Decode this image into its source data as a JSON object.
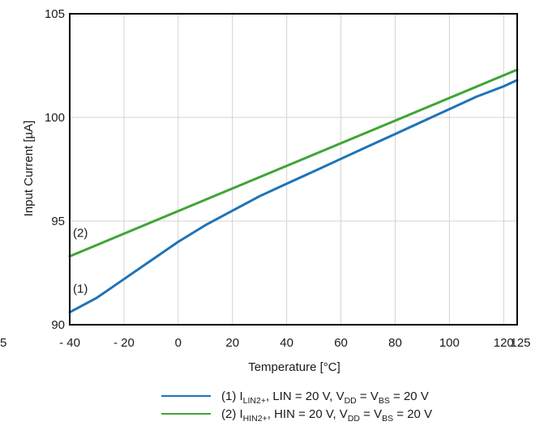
{
  "chart_data": {
    "type": "line",
    "title": "",
    "xlabel": "Temperature [°C]",
    "ylabel": "Input Current [µA]",
    "xlim": [
      -40,
      125
    ],
    "ylim": [
      90,
      105
    ],
    "x_ticks": [
      -40,
      -20,
      0,
      20,
      40,
      60,
      80,
      100,
      120,
      125
    ],
    "x_tick_labels": [
      "- 40",
      "- 20",
      "0",
      "20",
      "40",
      "60",
      "80",
      "100",
      "120",
      "125"
    ],
    "y_ticks": [
      90,
      95,
      100,
      105
    ],
    "y_tick_labels": [
      "90",
      "95",
      "100",
      "105"
    ],
    "stray_left_label": "5",
    "grid": true,
    "legend_position": "bottom",
    "series": [
      {
        "name": "(1) I_LIN2+, LIN = 20 V, V_DD = V_BS = 20 V",
        "curve_label": "(1)",
        "color": "#1f73b7",
        "x": [
          -40,
          -30,
          -20,
          -10,
          0,
          10,
          20,
          30,
          40,
          50,
          60,
          70,
          80,
          90,
          100,
          110,
          120,
          125
        ],
        "y": [
          90.6,
          91.3,
          92.2,
          93.1,
          94.0,
          94.8,
          95.5,
          96.2,
          96.8,
          97.4,
          98.0,
          98.6,
          99.2,
          99.8,
          100.4,
          101.0,
          101.5,
          101.8
        ]
      },
      {
        "name": "(2) I_HIN2+, HIN = 20 V, V_DD = V_BS = 20 V",
        "curve_label": "(2)",
        "color": "#3fa535",
        "x": [
          -40,
          125
        ],
        "y": [
          93.3,
          102.3
        ]
      }
    ],
    "legend": [
      {
        "label_prefix": "(1) I",
        "label_sub": "LIN2+",
        "label_mid": ", LIN = 20 V, V",
        "label_sub2": "DD",
        "label_eq": " = V",
        "label_sub3": "BS",
        "label_suffix": " = 20 V",
        "color": "#1f73b7"
      },
      {
        "label_prefix": "(2) I",
        "label_sub": "HIN2+",
        "label_mid": ", HIN = 20 V, V",
        "label_sub2": "DD",
        "label_eq": " = V",
        "label_sub3": "BS",
        "label_suffix": " = 20 V",
        "color": "#3fa535"
      }
    ]
  }
}
